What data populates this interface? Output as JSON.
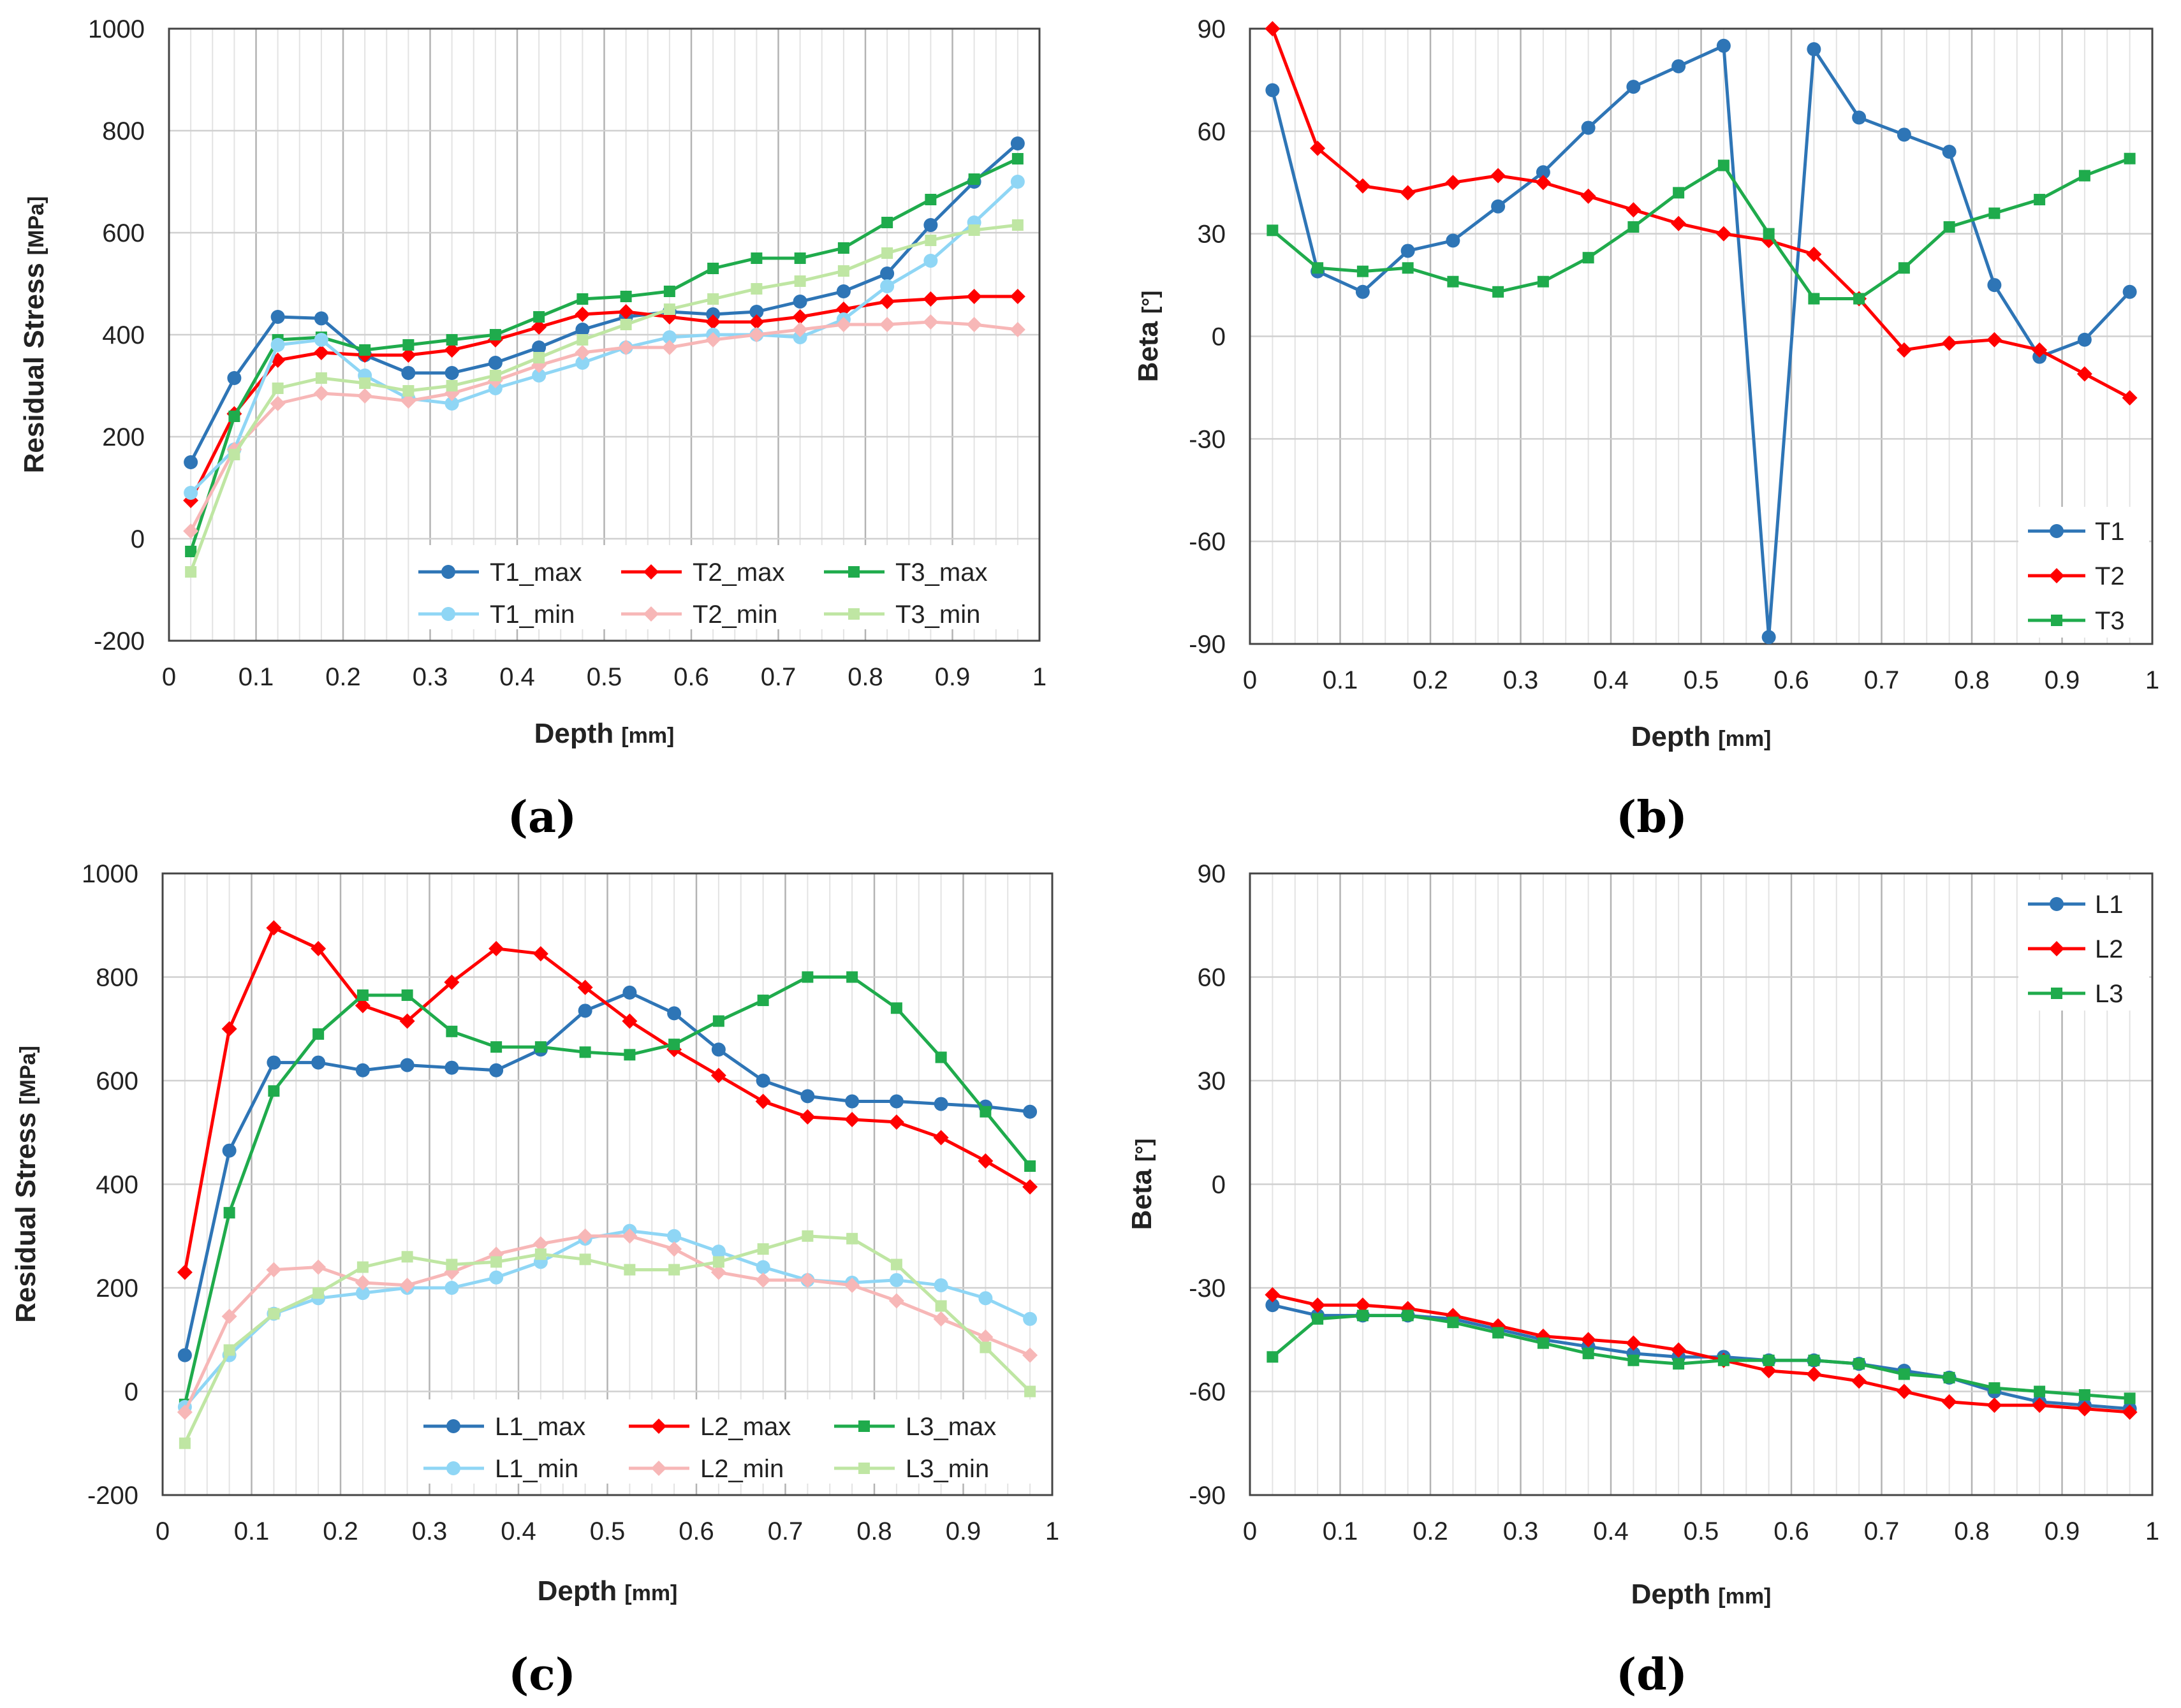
{
  "figure": {
    "captions": [
      "(a)",
      "(b)",
      "(c)",
      "(d)"
    ]
  },
  "colors": {
    "T1_max": "#2e75b6",
    "T2_max": "#ff0000",
    "T3_max": "#1fab4c",
    "T1_min": "#8fd6f5",
    "T2_min": "#f7b7b7",
    "T3_min": "#bfe6a3",
    "L1_max": "#2e75b6",
    "L2_max": "#ff0000",
    "L3_max": "#1fab4c",
    "L1_min": "#8fd6f5",
    "L2_min": "#f7b7b7",
    "L3_min": "#bfe6a3",
    "T1": "#2e75b6",
    "T2": "#ff0000",
    "T3": "#1fab4c",
    "L1": "#2e75b6",
    "L2": "#ff0000",
    "L3": "#1fab4c"
  },
  "chart_data": [
    {
      "id": "a",
      "type": "line",
      "caption": "(a)",
      "xlabel": "Depth",
      "xunit": "[mm]",
      "ylabel": "Residual Stress",
      "yunit": "[MPa]",
      "xlim": [
        0,
        1
      ],
      "ylim": [
        -200,
        1000
      ],
      "xticks": [
        0,
        0.1,
        0.2,
        0.3,
        0.4,
        0.5,
        0.6,
        0.7,
        0.8,
        0.9,
        1
      ],
      "xtick_labels": [
        "0",
        "0.1",
        "0.2",
        "0.3",
        "0.4",
        "0.5",
        "0.6",
        "0.7",
        "0.8",
        "0.9",
        "1"
      ],
      "yticks": [
        -200,
        0,
        200,
        400,
        600,
        800,
        1000
      ],
      "ytick_labels": [
        "-200",
        "0",
        "200",
        "400",
        "600",
        "800",
        "1000"
      ],
      "legend": "bottom-right",
      "x": [
        0.025,
        0.075,
        0.125,
        0.175,
        0.225,
        0.275,
        0.325,
        0.375,
        0.425,
        0.475,
        0.525,
        0.575,
        0.625,
        0.675,
        0.725,
        0.775,
        0.825,
        0.875,
        0.925,
        0.975
      ],
      "series": [
        {
          "name": "T1_max",
          "marker": "circle",
          "values": [
            150,
            315,
            435,
            432,
            360,
            325,
            325,
            345,
            375,
            410,
            435,
            445,
            440,
            445,
            465,
            485,
            520,
            615,
            700,
            775
          ]
        },
        {
          "name": "T2_max",
          "marker": "diamond",
          "values": [
            75,
            245,
            350,
            365,
            360,
            360,
            370,
            390,
            415,
            440,
            445,
            435,
            425,
            425,
            435,
            450,
            465,
            470,
            475,
            475
          ]
        },
        {
          "name": "T3_max",
          "marker": "square",
          "values": [
            -25,
            240,
            390,
            395,
            370,
            380,
            390,
            400,
            435,
            470,
            475,
            485,
            530,
            550,
            550,
            570,
            620,
            665,
            705,
            745
          ]
        },
        {
          "name": "T1_min",
          "marker": "circle",
          "values": [
            90,
            175,
            380,
            390,
            320,
            275,
            265,
            295,
            320,
            345,
            375,
            395,
            400,
            400,
            395,
            430,
            495,
            545,
            620,
            700
          ]
        },
        {
          "name": "T2_min",
          "marker": "diamond",
          "values": [
            15,
            175,
            265,
            285,
            280,
            270,
            285,
            310,
            340,
            365,
            375,
            375,
            390,
            400,
            410,
            420,
            420,
            425,
            420,
            410
          ]
        },
        {
          "name": "T3_min",
          "marker": "square",
          "values": [
            -65,
            165,
            295,
            315,
            305,
            290,
            300,
            320,
            355,
            390,
            420,
            450,
            470,
            490,
            505,
            525,
            560,
            585,
            605,
            615
          ]
        }
      ]
    },
    {
      "id": "b",
      "type": "line",
      "caption": "(b)",
      "xlabel": "Depth",
      "xunit": "[mm]",
      "ylabel": "Beta",
      "yunit": "[°]",
      "xlim": [
        0,
        1
      ],
      "ylim": [
        -90,
        90
      ],
      "xticks": [
        0,
        0.1,
        0.2,
        0.3,
        0.4,
        0.5,
        0.6,
        0.7,
        0.8,
        0.9,
        1
      ],
      "xtick_labels": [
        "0",
        "0.1",
        "0.2",
        "0.3",
        "0.4",
        "0.5",
        "0.6",
        "0.7",
        "0.8",
        "0.9",
        "1"
      ],
      "yticks": [
        -90,
        -60,
        -30,
        0,
        30,
        60,
        90
      ],
      "ytick_labels": [
        "-90",
        "-60",
        "-30",
        "0",
        "30",
        "60",
        "90"
      ],
      "legend": "bottom-right",
      "x": [
        0.025,
        0.075,
        0.125,
        0.175,
        0.225,
        0.275,
        0.325,
        0.375,
        0.425,
        0.475,
        0.525,
        0.575,
        0.625,
        0.675,
        0.725,
        0.775,
        0.825,
        0.875,
        0.925,
        0.975
      ],
      "series": [
        {
          "name": "T1",
          "marker": "circle",
          "values": [
            72,
            19,
            13,
            25,
            28,
            38,
            48,
            61,
            73,
            79,
            85,
            -88,
            84,
            64,
            59,
            54,
            15,
            -6,
            -1,
            13
          ]
        },
        {
          "name": "T2",
          "marker": "diamond",
          "values": [
            90,
            55,
            44,
            42,
            45,
            47,
            45,
            41,
            37,
            33,
            30,
            28,
            24,
            11,
            -4,
            -2,
            -1,
            -4,
            -11,
            -18
          ]
        },
        {
          "name": "T3",
          "marker": "square",
          "values": [
            31,
            20,
            19,
            20,
            16,
            13,
            16,
            23,
            32,
            42,
            50,
            30,
            11,
            11,
            20,
            32,
            36,
            40,
            47,
            52
          ]
        }
      ]
    },
    {
      "id": "c",
      "type": "line",
      "caption": "(c)",
      "xlabel": "Depth",
      "xunit": "[mm]",
      "ylabel": "Residual Stress",
      "yunit": "[MPa]",
      "xlim": [
        0,
        1
      ],
      "ylim": [
        -200,
        1000
      ],
      "xticks": [
        0,
        0.1,
        0.2,
        0.3,
        0.4,
        0.5,
        0.6,
        0.7,
        0.8,
        0.9,
        1
      ],
      "xtick_labels": [
        "0",
        "0.1",
        "0.2",
        "0.3",
        "0.4",
        "0.5",
        "0.6",
        "0.7",
        "0.8",
        "0.9",
        "1"
      ],
      "yticks": [
        -200,
        0,
        200,
        400,
        600,
        800,
        1000
      ],
      "ytick_labels": [
        "-200",
        "0",
        "200",
        "400",
        "600",
        "800",
        "1000"
      ],
      "legend": "bottom-right",
      "x": [
        0.025,
        0.075,
        0.125,
        0.175,
        0.225,
        0.275,
        0.325,
        0.375,
        0.425,
        0.475,
        0.525,
        0.575,
        0.625,
        0.675,
        0.725,
        0.775,
        0.825,
        0.875,
        0.925,
        0.975
      ],
      "series": [
        {
          "name": "L1_max",
          "marker": "circle",
          "values": [
            70,
            465,
            635,
            635,
            620,
            630,
            625,
            620,
            660,
            735,
            770,
            730,
            660,
            600,
            570,
            560,
            560,
            555,
            550,
            540
          ]
        },
        {
          "name": "L2_max",
          "marker": "diamond",
          "values": [
            230,
            700,
            895,
            855,
            745,
            715,
            790,
            855,
            845,
            780,
            715,
            660,
            610,
            560,
            530,
            525,
            520,
            490,
            445,
            395
          ]
        },
        {
          "name": "L3_max",
          "marker": "square",
          "values": [
            -25,
            345,
            580,
            690,
            765,
            765,
            695,
            665,
            665,
            655,
            650,
            670,
            715,
            755,
            800,
            800,
            740,
            645,
            540,
            435
          ]
        },
        {
          "name": "L1_min",
          "marker": "circle",
          "values": [
            -30,
            70,
            150,
            180,
            190,
            200,
            200,
            220,
            250,
            295,
            310,
            300,
            270,
            240,
            215,
            210,
            215,
            205,
            180,
            140
          ]
        },
        {
          "name": "L2_min",
          "marker": "diamond",
          "values": [
            -40,
            145,
            235,
            240,
            210,
            205,
            230,
            265,
            285,
            300,
            300,
            275,
            230,
            215,
            215,
            205,
            175,
            140,
            105,
            70
          ]
        },
        {
          "name": "L3_min",
          "marker": "square",
          "values": [
            -100,
            80,
            150,
            190,
            240,
            260,
            245,
            250,
            265,
            255,
            235,
            235,
            250,
            275,
            300,
            295,
            245,
            165,
            85,
            0
          ]
        }
      ]
    },
    {
      "id": "d",
      "type": "line",
      "caption": "(d)",
      "xlabel": "Depth",
      "xunit": "[mm]",
      "ylabel": "Beta",
      "yunit": "[°]",
      "xlim": [
        0,
        1
      ],
      "ylim": [
        -90,
        90
      ],
      "xticks": [
        0,
        0.1,
        0.2,
        0.3,
        0.4,
        0.5,
        0.6,
        0.7,
        0.8,
        0.9,
        1
      ],
      "xtick_labels": [
        "0",
        "0.1",
        "0.2",
        "0.3",
        "0.4",
        "0.5",
        "0.6",
        "0.7",
        "0.8",
        "0.9",
        "1"
      ],
      "yticks": [
        -90,
        -60,
        -30,
        0,
        30,
        60,
        90
      ],
      "ytick_labels": [
        "-90",
        "-60",
        "-30",
        "0",
        "30",
        "60",
        "90"
      ],
      "legend": "top-right",
      "x": [
        0.025,
        0.075,
        0.125,
        0.175,
        0.225,
        0.275,
        0.325,
        0.375,
        0.425,
        0.475,
        0.525,
        0.575,
        0.625,
        0.675,
        0.725,
        0.775,
        0.825,
        0.875,
        0.925,
        0.975
      ],
      "series": [
        {
          "name": "L1",
          "marker": "circle",
          "values": [
            -35,
            -38,
            -38,
            -38,
            -39,
            -42,
            -45,
            -47,
            -49,
            -50,
            -50,
            -51,
            -51,
            -52,
            -54,
            -56,
            -60,
            -63,
            -64,
            -65
          ]
        },
        {
          "name": "L2",
          "marker": "diamond",
          "values": [
            -32,
            -35,
            -35,
            -36,
            -38,
            -41,
            -44,
            -45,
            -46,
            -48,
            -51,
            -54,
            -55,
            -57,
            -60,
            -63,
            -64,
            -64,
            -65,
            -66
          ]
        },
        {
          "name": "L3",
          "marker": "square",
          "values": [
            -50,
            -39,
            -38,
            -38,
            -40,
            -43,
            -46,
            -49,
            -51,
            -52,
            -51,
            -51,
            -51,
            -52,
            -55,
            -56,
            -59,
            -60,
            -61,
            -62
          ]
        }
      ]
    }
  ]
}
